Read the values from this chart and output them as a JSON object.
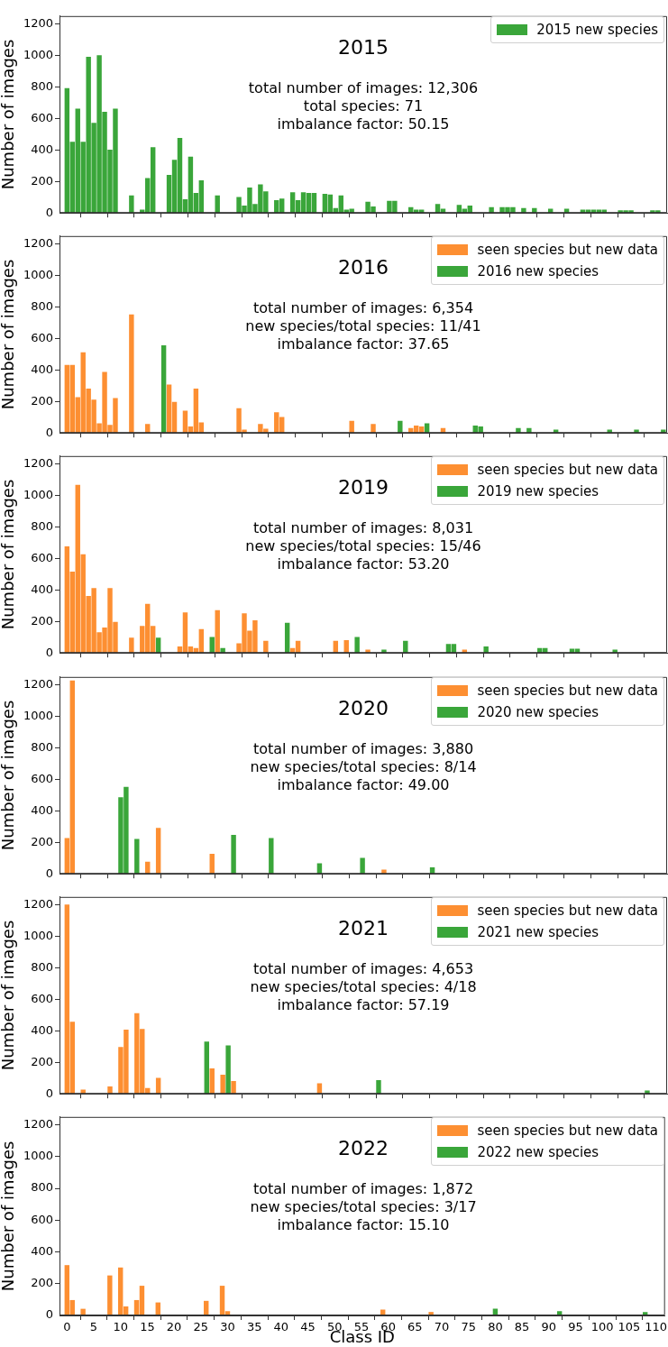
{
  "chart_data": [
    {
      "type": "bar",
      "title": "2015",
      "annotations": [
        "total number of images: 12,306",
        "total species: 71",
        "imbalance factor: 50.15"
      ],
      "ylabel": "Number of images",
      "x": [
        0,
        1,
        2,
        3,
        4,
        5,
        6,
        7,
        8,
        9,
        10,
        11,
        12,
        13,
        14,
        15,
        16,
        17,
        18,
        19,
        20,
        21,
        22,
        23,
        24,
        25,
        26,
        27,
        28,
        29,
        30,
        31,
        32,
        33,
        34,
        35,
        36,
        37,
        38,
        39,
        40,
        41,
        42,
        43,
        44,
        45,
        46,
        47,
        48,
        49,
        50,
        51,
        52,
        53,
        54,
        55,
        56,
        57,
        58,
        59,
        60,
        61,
        62,
        63,
        64,
        65,
        66,
        67,
        68,
        69,
        70,
        71,
        72,
        73,
        74,
        75,
        76,
        77,
        78,
        79,
        80,
        81,
        82,
        83,
        84,
        85,
        86,
        87,
        88,
        89,
        90,
        91,
        92,
        93,
        94,
        95,
        96,
        97,
        98,
        99,
        100,
        101,
        102,
        103,
        104,
        105,
        106,
        107,
        108,
        109,
        110
      ],
      "xlim": [
        -1.4,
        111.7
      ],
      "xticks": [
        0,
        5,
        10,
        15,
        20,
        25,
        30,
        35,
        40,
        45,
        50,
        55,
        60,
        65,
        70,
        75,
        80,
        85,
        90,
        95,
        100,
        105,
        110
      ],
      "ylim": [
        0,
        1250
      ],
      "yticks": [
        0,
        200,
        400,
        600,
        800,
        1000,
        1200
      ],
      "tick_labels": "y",
      "legend": "top right",
      "series": [
        {
          "name": "2015 new species",
          "color": "#3aa63a",
          "values": [
            790,
            450,
            660,
            450,
            990,
            570,
            1000,
            640,
            400,
            660,
            null,
            null,
            110,
            null,
            20,
            220,
            415,
            null,
            null,
            240,
            335,
            475,
            85,
            355,
            125,
            205,
            null,
            null,
            110,
            null,
            null,
            null,
            100,
            45,
            160,
            55,
            180,
            135,
            null,
            80,
            90,
            null,
            130,
            80,
            130,
            125,
            125,
            null,
            120,
            115,
            30,
            110,
            20,
            25,
            null,
            null,
            70,
            40,
            null,
            null,
            75,
            75,
            null,
            null,
            35,
            20,
            20,
            null,
            null,
            55,
            25,
            null,
            null,
            50,
            25,
            45,
            null,
            null,
            null,
            35,
            null,
            35,
            35,
            35,
            null,
            30,
            null,
            30,
            null,
            null,
            25,
            null,
            null,
            25,
            null,
            null,
            20,
            20,
            20,
            20,
            20,
            null,
            null,
            15,
            15,
            15,
            null,
            null,
            null,
            15,
            15
          ]
        }
      ]
    },
    {
      "type": "bar",
      "title": "2016",
      "annotations": [
        "total number of images: 6,354",
        "new species/total species: 11/41",
        "imbalance factor: 37.65"
      ],
      "ylabel": "Number of images",
      "x": [
        0,
        1,
        2,
        3,
        4,
        5,
        6,
        7,
        8,
        9,
        10,
        11,
        12,
        13,
        14,
        15,
        16,
        17,
        18,
        19,
        20,
        21,
        22,
        23,
        24,
        25,
        26,
        27,
        28,
        29,
        30,
        31,
        32,
        33,
        34,
        35,
        36,
        37,
        38,
        39,
        40,
        41,
        42,
        43,
        44,
        45,
        46,
        47,
        48,
        49,
        50,
        51,
        52,
        53,
        54,
        55,
        56,
        57,
        58,
        59,
        60,
        61,
        62,
        63,
        64,
        65,
        66,
        67,
        68,
        69,
        70,
        71,
        72,
        73,
        74,
        75,
        76,
        77,
        78,
        79,
        80,
        81,
        82,
        83,
        84,
        85,
        86,
        87,
        88,
        89,
        90,
        91,
        92,
        93,
        94,
        95,
        96,
        97,
        98,
        99,
        100,
        101,
        102,
        103,
        104,
        105,
        106,
        107,
        108,
        109,
        110,
        111
      ],
      "xlim": [
        -1.4,
        111.7
      ],
      "xticks": [
        0,
        5,
        10,
        15,
        20,
        25,
        30,
        35,
        40,
        45,
        50,
        55,
        60,
        65,
        70,
        75,
        80,
        85,
        90,
        95,
        100,
        105,
        110
      ],
      "ylim": [
        0,
        1250
      ],
      "yticks": [
        0,
        200,
        400,
        600,
        800,
        1000,
        1200
      ],
      "tick_labels": "y",
      "legend": "top right",
      "series": [
        {
          "name": "seen species but new data",
          "color": "#fd8f32",
          "values": [
            430,
            430,
            225,
            510,
            280,
            210,
            60,
            385,
            50,
            220,
            null,
            null,
            750,
            null,
            null,
            55,
            null,
            null,
            null,
            305,
            195,
            null,
            140,
            40,
            280,
            65,
            null,
            null,
            null,
            null,
            null,
            null,
            155,
            20,
            null,
            null,
            55,
            25,
            null,
            130,
            100,
            null,
            null,
            null,
            null,
            null,
            null,
            null,
            null,
            null,
            null,
            null,
            null,
            75,
            null,
            null,
            null,
            55,
            null,
            null,
            null,
            null,
            null,
            null,
            30,
            45,
            40,
            null,
            null,
            null,
            30,
            null,
            null,
            null,
            null,
            null,
            null,
            null,
            null,
            null,
            null,
            null,
            null,
            null,
            null,
            null,
            null,
            null,
            null,
            null,
            null,
            null,
            null,
            null,
            null,
            null,
            null,
            null,
            null,
            null,
            null,
            null,
            null,
            null,
            null,
            null,
            null,
            null,
            null,
            null,
            null,
            null
          ]
        },
        {
          "name": "2016 new species",
          "color": "#3aa63a",
          "values": [
            null,
            null,
            null,
            null,
            null,
            null,
            null,
            null,
            null,
            null,
            null,
            null,
            null,
            null,
            null,
            null,
            null,
            null,
            555,
            null,
            null,
            null,
            null,
            null,
            null,
            null,
            null,
            null,
            null,
            null,
            null,
            null,
            null,
            null,
            null,
            null,
            null,
            null,
            null,
            null,
            null,
            null,
            null,
            null,
            null,
            null,
            null,
            null,
            null,
            null,
            null,
            null,
            null,
            null,
            null,
            null,
            null,
            null,
            null,
            null,
            null,
            null,
            75,
            null,
            null,
            null,
            null,
            60,
            null,
            null,
            null,
            null,
            null,
            null,
            null,
            null,
            45,
            40,
            null,
            null,
            null,
            null,
            null,
            null,
            30,
            null,
            30,
            null,
            null,
            null,
            null,
            20,
            null,
            null,
            null,
            null,
            null,
            null,
            null,
            null,
            null,
            20,
            null,
            null,
            null,
            null,
            20,
            null,
            null,
            null,
            null,
            20
          ]
        }
      ]
    },
    {
      "type": "bar",
      "title": "2019",
      "annotations": [
        "total number of images: 8,031",
        "new species/total species: 15/46",
        "imbalance factor: 53.20"
      ],
      "ylabel": "Number of images",
      "x": [
        0,
        1,
        2,
        3,
        4,
        5,
        6,
        7,
        8,
        9,
        10,
        11,
        12,
        13,
        14,
        15,
        16,
        17,
        18,
        19,
        20,
        21,
        22,
        23,
        24,
        25,
        26,
        27,
        28,
        29,
        30,
        31,
        32,
        33,
        34,
        35,
        36,
        37,
        38,
        39,
        40,
        41,
        42,
        43,
        44,
        45,
        46,
        47,
        48,
        49,
        50,
        51,
        52,
        53,
        54,
        55,
        56,
        57,
        58,
        59,
        60,
        61,
        62,
        63,
        64,
        65,
        66,
        67,
        68,
        69,
        70,
        71,
        72,
        73,
        74,
        75,
        76,
        77,
        78,
        79,
        80,
        81,
        82,
        83,
        84,
        85,
        86,
        87,
        88,
        89,
        90,
        91,
        92,
        93,
        94,
        95,
        96,
        97,
        98,
        99,
        100,
        101,
        102
      ],
      "xlim": [
        -1.4,
        111.7
      ],
      "xticks": [
        0,
        5,
        10,
        15,
        20,
        25,
        30,
        35,
        40,
        45,
        50,
        55,
        60,
        65,
        70,
        75,
        80,
        85,
        90,
        95,
        100,
        105,
        110
      ],
      "ylim": [
        0,
        1250
      ],
      "yticks": [
        0,
        200,
        400,
        600,
        800,
        1000,
        1200
      ],
      "tick_labels": "y",
      "legend": "top right",
      "series": [
        {
          "name": "seen species but new data",
          "color": "#fd8f32",
          "values": [
            675,
            515,
            1065,
            625,
            360,
            410,
            130,
            160,
            410,
            195,
            null,
            null,
            95,
            null,
            170,
            310,
            170,
            null,
            null,
            null,
            null,
            40,
            255,
            40,
            30,
            150,
            null,
            null,
            270,
            null,
            null,
            null,
            60,
            250,
            140,
            205,
            null,
            75,
            null,
            null,
            null,
            null,
            30,
            75,
            null,
            null,
            null,
            null,
            null,
            null,
            75,
            null,
            80,
            null,
            null,
            null,
            20,
            null,
            null,
            null,
            null,
            null,
            null,
            null,
            null,
            null,
            null,
            null,
            null,
            null,
            null,
            null,
            null,
            null,
            20,
            null,
            null,
            null,
            null,
            null,
            null,
            null,
            null,
            null,
            null,
            null,
            null,
            null,
            null,
            null,
            null,
            null,
            null,
            null,
            null,
            null,
            null,
            null,
            null,
            null,
            null,
            null,
            null
          ]
        },
        {
          "name": "2019 new species",
          "color": "#3aa63a",
          "values": [
            null,
            null,
            null,
            null,
            null,
            null,
            null,
            null,
            null,
            null,
            null,
            null,
            null,
            null,
            null,
            null,
            null,
            95,
            null,
            null,
            null,
            null,
            null,
            null,
            null,
            null,
            null,
            100,
            null,
            30,
            null,
            null,
            null,
            null,
            null,
            null,
            null,
            null,
            null,
            null,
            null,
            190,
            null,
            null,
            null,
            null,
            null,
            null,
            null,
            null,
            null,
            null,
            null,
            null,
            100,
            null,
            null,
            null,
            null,
            20,
            null,
            null,
            null,
            75,
            null,
            null,
            null,
            null,
            null,
            null,
            null,
            55,
            55,
            null,
            null,
            null,
            null,
            null,
            40,
            null,
            null,
            null,
            null,
            null,
            null,
            null,
            null,
            null,
            30,
            30,
            null,
            null,
            null,
            null,
            25,
            25,
            null,
            null,
            null,
            null,
            null,
            null,
            20
          ]
        }
      ]
    },
    {
      "type": "bar",
      "title": "2020",
      "annotations": [
        "total number of images: 3,880",
        "new species/total species: 8/14",
        "imbalance factor: 49.00"
      ],
      "ylabel": "Number of images",
      "x": [
        0,
        1,
        2,
        3,
        4,
        5,
        6,
        7,
        8,
        9,
        10,
        11,
        12,
        13,
        14,
        15,
        16,
        17,
        18,
        19,
        20,
        21,
        22,
        23,
        24,
        25,
        26,
        27,
        28,
        29,
        30,
        31,
        32,
        33,
        34,
        35,
        36,
        37,
        38,
        39,
        40,
        41,
        42,
        43,
        44,
        45,
        46,
        47,
        48,
        49,
        50,
        51,
        52,
        53,
        54,
        55,
        56,
        57,
        58,
        59,
        60,
        61,
        62,
        63,
        64,
        65,
        66,
        67,
        68
      ],
      "xlim": [
        -1.4,
        111.7
      ],
      "xticks": [
        0,
        5,
        10,
        15,
        20,
        25,
        30,
        35,
        40,
        45,
        50,
        55,
        60,
        65,
        70,
        75,
        80,
        85,
        90,
        95,
        100,
        105,
        110
      ],
      "ylim": [
        0,
        1250
      ],
      "yticks": [
        0,
        200,
        400,
        600,
        800,
        1000,
        1200
      ],
      "tick_labels": "y",
      "legend": "top right",
      "series": [
        {
          "name": "seen species but new data",
          "color": "#fd8f32",
          "values": [
            225,
            1225,
            null,
            null,
            null,
            null,
            null,
            null,
            null,
            null,
            null,
            null,
            null,
            null,
            null,
            75,
            null,
            290,
            null,
            null,
            null,
            null,
            null,
            null,
            null,
            null,
            null,
            125,
            null,
            null,
            null,
            null,
            null,
            null,
            null,
            null,
            null,
            null,
            null,
            null,
            null,
            null,
            null,
            null,
            null,
            null,
            null,
            null,
            null,
            null,
            null,
            null,
            null,
            null,
            null,
            null,
            null,
            null,
            null,
            25,
            null,
            null,
            null,
            null,
            null,
            null,
            null,
            null,
            null
          ]
        },
        {
          "name": "2020 new species",
          "color": "#3aa63a",
          "values": [
            null,
            null,
            null,
            null,
            null,
            null,
            null,
            null,
            null,
            null,
            485,
            550,
            null,
            220,
            null,
            null,
            null,
            null,
            null,
            null,
            null,
            null,
            null,
            null,
            null,
            null,
            null,
            null,
            null,
            null,
            null,
            245,
            null,
            null,
            null,
            null,
            null,
            null,
            225,
            null,
            null,
            null,
            null,
            null,
            null,
            null,
            null,
            65,
            null,
            null,
            null,
            null,
            null,
            null,
            null,
            100,
            null,
            null,
            null,
            null,
            null,
            null,
            null,
            null,
            null,
            null,
            null,
            null,
            40
          ]
        }
      ]
    },
    {
      "type": "bar",
      "title": "2021",
      "annotations": [
        "total number of images: 4,653",
        "new species/total species: 4/18",
        "imbalance factor: 57.19"
      ],
      "ylabel": "Number of images",
      "x": [
        0,
        1,
        2,
        3,
        4,
        5,
        6,
        7,
        8,
        9,
        10,
        11,
        12,
        13,
        14,
        15,
        16,
        17,
        18,
        19,
        20,
        21,
        22,
        23,
        24,
        25,
        26,
        27,
        28,
        29,
        30,
        31,
        32,
        33,
        34,
        35,
        36,
        37,
        38,
        39,
        40,
        41,
        42,
        43,
        44,
        45,
        46,
        47,
        48,
        49,
        50,
        51,
        52,
        53,
        54,
        55,
        56,
        57,
        58,
        59,
        60,
        61,
        62,
        63,
        64,
        65,
        66,
        67,
        68,
        69,
        70,
        71,
        72,
        73,
        74,
        75,
        76,
        77,
        78,
        79,
        80,
        81,
        82,
        83,
        84,
        85,
        86,
        87,
        88,
        89,
        90,
        91,
        92,
        93,
        94,
        95,
        96,
        97,
        98,
        99,
        100,
        101,
        102,
        103,
        104,
        105,
        106,
        107,
        108
      ],
      "xlim": [
        -1.4,
        111.7
      ],
      "xticks": [
        0,
        5,
        10,
        15,
        20,
        25,
        30,
        35,
        40,
        45,
        50,
        55,
        60,
        65,
        70,
        75,
        80,
        85,
        90,
        95,
        100,
        105,
        110
      ],
      "ylim": [
        0,
        1250
      ],
      "yticks": [
        0,
        200,
        400,
        600,
        800,
        1000,
        1200
      ],
      "tick_labels": "y",
      "legend": "top right",
      "series": [
        {
          "name": "seen species but new data",
          "color": "#fd8f32",
          "values": [
            1200,
            455,
            null,
            25,
            null,
            null,
            null,
            null,
            45,
            null,
            295,
            405,
            null,
            510,
            410,
            35,
            null,
            100,
            null,
            null,
            null,
            null,
            null,
            null,
            null,
            null,
            null,
            160,
            null,
            120,
            null,
            80,
            null,
            null,
            null,
            null,
            null,
            null,
            null,
            null,
            null,
            null,
            null,
            null,
            null,
            null,
            null,
            65,
            null,
            null,
            null,
            null,
            null,
            null,
            null,
            null,
            null,
            null,
            null,
            null,
            null,
            null,
            null,
            null,
            null,
            null,
            null,
            null,
            null,
            null,
            null,
            null,
            null,
            null,
            null,
            null,
            null,
            null,
            null,
            null,
            null,
            null,
            null,
            null,
            null,
            null,
            null,
            null,
            null,
            null,
            null,
            null,
            null,
            null,
            null,
            null,
            null,
            null,
            null,
            null,
            null,
            null,
            null,
            null,
            null,
            null,
            null,
            null,
            null
          ]
        },
        {
          "name": "2021 new species",
          "color": "#3aa63a",
          "values": [
            null,
            null,
            null,
            null,
            null,
            null,
            null,
            null,
            null,
            null,
            null,
            null,
            null,
            null,
            null,
            null,
            null,
            null,
            null,
            null,
            null,
            null,
            null,
            null,
            null,
            null,
            330,
            null,
            null,
            null,
            305,
            null,
            null,
            null,
            null,
            null,
            null,
            null,
            null,
            null,
            null,
            null,
            null,
            null,
            null,
            null,
            null,
            null,
            null,
            null,
            null,
            null,
            null,
            null,
            null,
            null,
            null,
            null,
            85,
            null,
            null,
            null,
            null,
            null,
            null,
            null,
            null,
            null,
            null,
            null,
            null,
            null,
            null,
            null,
            null,
            null,
            null,
            null,
            null,
            null,
            null,
            null,
            null,
            null,
            null,
            null,
            null,
            null,
            null,
            null,
            null,
            null,
            null,
            null,
            null,
            null,
            null,
            null,
            null,
            null,
            null,
            null,
            null,
            null,
            null,
            null,
            null,
            null,
            20
          ]
        }
      ]
    },
    {
      "type": "bar",
      "title": "2022",
      "annotations": [
        "total number of images: 1,872",
        "new species/total species: 3/17",
        "imbalance factor: 15.10"
      ],
      "ylabel": "Number of images",
      "xlabel": "Class ID",
      "x": [
        0,
        1,
        2,
        3,
        4,
        5,
        6,
        7,
        8,
        9,
        10,
        11,
        12,
        13,
        14,
        15,
        16,
        17,
        18,
        19,
        20,
        21,
        22,
        23,
        24,
        25,
        26,
        27,
        28,
        29,
        30,
        31,
        32,
        33,
        34,
        35,
        36,
        37,
        38,
        39,
        40,
        41,
        42,
        43,
        44,
        45,
        46,
        47,
        48,
        49,
        50,
        51,
        52,
        53,
        54,
        55,
        56,
        57,
        58,
        59,
        60,
        61,
        62,
        63,
        64,
        65,
        66,
        67,
        68,
        69,
        70,
        71,
        72,
        73,
        74,
        75,
        76,
        77,
        78,
        79,
        80,
        81,
        82,
        83,
        84,
        85,
        86,
        87,
        88,
        89,
        90,
        91,
        92,
        93,
        94,
        95,
        96,
        97,
        98,
        99,
        100,
        101,
        102,
        103,
        104,
        105,
        106,
        107,
        108
      ],
      "xlim": [
        -1.4,
        111.7
      ],
      "xticks": [
        0,
        5,
        10,
        15,
        20,
        25,
        30,
        35,
        40,
        45,
        50,
        55,
        60,
        65,
        70,
        75,
        80,
        85,
        90,
        95,
        100,
        105,
        110
      ],
      "ylim": [
        0,
        1250
      ],
      "yticks": [
        0,
        200,
        400,
        600,
        800,
        1000,
        1200
      ],
      "legend": "top right",
      "series": [
        {
          "name": "seen species but new data",
          "color": "#fd8f32",
          "values": [
            315,
            95,
            null,
            40,
            null,
            null,
            null,
            null,
            250,
            null,
            300,
            55,
            null,
            95,
            185,
            null,
            null,
            80,
            null,
            null,
            null,
            null,
            null,
            null,
            null,
            null,
            90,
            null,
            null,
            185,
            25,
            null,
            null,
            null,
            null,
            null,
            null,
            null,
            null,
            null,
            null,
            null,
            null,
            null,
            null,
            null,
            null,
            null,
            null,
            null,
            null,
            null,
            null,
            null,
            null,
            null,
            null,
            null,
            null,
            35,
            null,
            null,
            null,
            null,
            null,
            null,
            null,
            null,
            20,
            null,
            null,
            null,
            null,
            null,
            null,
            null,
            null,
            null,
            null,
            null,
            null,
            null,
            null,
            null,
            null,
            null,
            null,
            null,
            null,
            null,
            null,
            null,
            null,
            null,
            null,
            null,
            null,
            null,
            null,
            null,
            null,
            null,
            null,
            null,
            null,
            null,
            null,
            null,
            null
          ]
        },
        {
          "name": "2022 new species",
          "color": "#3aa63a",
          "values": [
            null,
            null,
            null,
            null,
            null,
            null,
            null,
            null,
            null,
            null,
            null,
            null,
            null,
            null,
            null,
            null,
            null,
            null,
            null,
            null,
            null,
            null,
            null,
            null,
            null,
            null,
            null,
            null,
            null,
            null,
            null,
            null,
            null,
            null,
            null,
            null,
            null,
            null,
            null,
            null,
            null,
            null,
            null,
            null,
            null,
            null,
            null,
            null,
            null,
            null,
            null,
            null,
            null,
            null,
            null,
            null,
            null,
            null,
            null,
            null,
            null,
            null,
            null,
            null,
            null,
            null,
            null,
            null,
            null,
            null,
            null,
            null,
            null,
            null,
            null,
            null,
            null,
            null,
            null,
            null,
            40,
            null,
            null,
            null,
            null,
            null,
            null,
            null,
            null,
            null,
            null,
            null,
            25,
            null,
            null,
            null,
            null,
            null,
            null,
            null,
            null,
            null,
            null,
            null,
            null,
            null,
            null,
            null,
            20
          ]
        }
      ]
    }
  ]
}
